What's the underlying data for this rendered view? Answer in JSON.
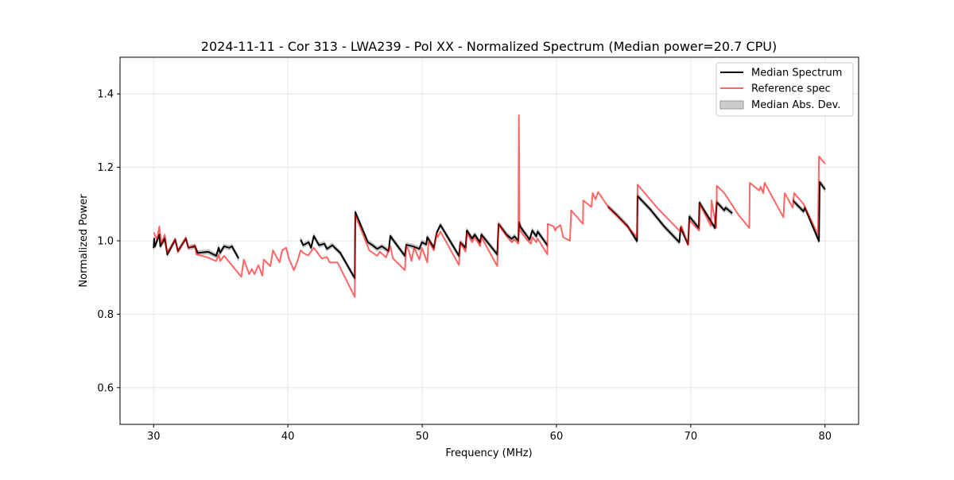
{
  "chart_data": {
    "type": "line",
    "title": "2024-11-11 - Cor 313 - LWA239 - Pol XX - Normalized Spectrum (Median power=20.7 CPU)",
    "xlabel": "Frequency (MHz)",
    "ylabel": "Normalized Power",
    "xlim": [
      27.5,
      82.5
    ],
    "ylim": [
      0.5,
      1.5
    ],
    "xticks": [
      30,
      40,
      50,
      60,
      70,
      80
    ],
    "xtick_labels": [
      "30",
      "40",
      "50",
      "60",
      "70",
      "80"
    ],
    "yticks": [
      0.6,
      0.8,
      1.0,
      1.2,
      1.4
    ],
    "ytick_labels": [
      "0.6",
      "0.8",
      "1.0",
      "1.2",
      "1.4"
    ],
    "grid": true,
    "legend_position": "top-right",
    "legend": [
      "Median Spectrum",
      "Reference spec",
      "Median Abs. Dev."
    ],
    "colors": {
      "median": "#000000",
      "reference": "#ff0000",
      "mad": "#999999"
    },
    "mad_halfwidth": 0.006,
    "series": [
      {
        "name": "Median Spectrum",
        "segments": [
          [
            [
              30.0,
              0.98
            ],
            [
              30.04,
              1.006
            ],
            [
              30.1,
              0.985
            ],
            [
              30.43,
              1.017
            ],
            [
              30.5,
              0.985
            ],
            [
              30.83,
              1.006
            ],
            [
              31.02,
              0.963
            ],
            [
              31.61,
              1.003
            ],
            [
              31.81,
              0.972
            ],
            [
              32.4,
              1.006
            ],
            [
              32.59,
              0.981
            ],
            [
              33.08,
              0.985
            ],
            [
              33.28,
              0.967
            ],
            [
              34.07,
              0.97
            ],
            [
              34.66,
              0.959
            ],
            [
              34.85,
              0.981
            ],
            [
              34.95,
              0.967
            ],
            [
              35.25,
              0.985
            ],
            [
              35.64,
              0.981
            ],
            [
              35.83,
              0.985
            ],
            [
              36.33,
              0.952
            ]
          ],
          [
            [
              40.95,
              1.003
            ],
            [
              41.14,
              0.988
            ],
            [
              41.54,
              0.996
            ],
            [
              41.73,
              0.981
            ],
            [
              41.93,
              1.013
            ],
            [
              42.32,
              0.988
            ],
            [
              42.72,
              0.992
            ],
            [
              42.91,
              0.978
            ],
            [
              43.31,
              0.988
            ],
            [
              43.5,
              0.981
            ],
            [
              43.9,
              0.967
            ],
            [
              44.98,
              0.898
            ],
            [
              45.02,
              1.078
            ],
            [
              45.96,
              0.996
            ],
            [
              46.26,
              0.989
            ],
            [
              46.65,
              0.978
            ],
            [
              47.0,
              0.985
            ],
            [
              47.5,
              0.972
            ],
            [
              47.63,
              1.013
            ],
            [
              47.82,
              1.003
            ],
            [
              48.71,
              0.959
            ],
            [
              48.81,
              0.989
            ],
            [
              49.3,
              0.985
            ],
            [
              49.79,
              0.978
            ],
            [
              49.98,
              0.996
            ],
            [
              50.3,
              0.99
            ],
            [
              50.38,
              1.01
            ],
            [
              50.87,
              0.981
            ],
            [
              51.07,
              1.021
            ],
            [
              51.36,
              1.043
            ],
            [
              52.74,
              0.959
            ],
            [
              52.84,
              0.996
            ],
            [
              53.23,
              0.981
            ],
            [
              53.33,
              1.028
            ],
            [
              53.72,
              1.006
            ],
            [
              53.92,
              1.017
            ],
            [
              54.31,
              0.995
            ],
            [
              54.41,
              1.017
            ],
            [
              55.59,
              0.963
            ],
            [
              55.69,
              1.046
            ],
            [
              56.28,
              1.017
            ],
            [
              56.67,
              1.005
            ],
            [
              56.87,
              1.012
            ],
            [
              57.16,
              1.0
            ],
            [
              57.22,
              1.05
            ],
            [
              57.35,
              1.036
            ],
            [
              58.0,
              1.003
            ],
            [
              58.2,
              1.028
            ],
            [
              58.5,
              1.012
            ],
            [
              58.6,
              1.025
            ],
            [
              59.32,
              0.988
            ]
          ],
          [
            [
              63.84,
              1.093
            ],
            [
              64.5,
              1.07
            ],
            [
              65.3,
              1.04
            ],
            [
              66.0,
              0.999
            ],
            [
              66.04,
              1.122
            ],
            [
              67.0,
              1.085
            ],
            [
              68.0,
              1.04
            ],
            [
              69.15,
              0.996
            ],
            [
              69.25,
              1.036
            ],
            [
              69.8,
              0.99
            ],
            [
              69.9,
              1.066
            ],
            [
              70.6,
              1.035
            ],
            [
              70.65,
              1.104
            ],
            [
              71.8,
              1.035
            ],
            [
              71.94,
              1.105
            ],
            [
              72.5,
              1.083
            ],
            [
              72.6,
              1.09
            ],
            [
              73.09,
              1.075
            ]
          ],
          [
            [
              77.6,
              1.11
            ],
            [
              78.4,
              1.08
            ],
            [
              78.5,
              1.09
            ],
            [
              79.55,
              0.999
            ],
            [
              79.6,
              1.16
            ],
            [
              80.0,
              1.14
            ]
          ]
        ]
      },
      {
        "name": "Reference spec",
        "segments": [
          [
            [
              30.0,
              1.02
            ],
            [
              30.04,
              1.021
            ],
            [
              30.24,
              1.003
            ],
            [
              30.43,
              1.039
            ],
            [
              30.57,
              0.992
            ],
            [
              30.83,
              1.017
            ],
            [
              31.02,
              0.967
            ],
            [
              31.61,
              1.005
            ],
            [
              31.81,
              0.97
            ],
            [
              32.4,
              1.008
            ],
            [
              32.59,
              0.981
            ],
            [
              33.08,
              0.988
            ],
            [
              33.18,
              0.963
            ],
            [
              34.0,
              0.955
            ],
            [
              34.66,
              0.945
            ],
            [
              34.85,
              0.963
            ],
            [
              34.95,
              0.945
            ],
            [
              35.25,
              0.959
            ],
            [
              36.53,
              0.902
            ],
            [
              36.72,
              0.949
            ],
            [
              37.12,
              0.909
            ],
            [
              37.31,
              0.923
            ],
            [
              37.51,
              0.909
            ],
            [
              37.8,
              0.934
            ],
            [
              38.1,
              0.905
            ],
            [
              38.2,
              0.949
            ],
            [
              38.69,
              0.931
            ],
            [
              38.89,
              0.974
            ],
            [
              39.38,
              0.941
            ],
            [
              39.57,
              0.974
            ],
            [
              39.87,
              0.981
            ],
            [
              40.07,
              0.952
            ],
            [
              40.45,
              0.92
            ],
            [
              40.75,
              0.949
            ],
            [
              40.95,
              0.974
            ],
            [
              41.14,
              0.967
            ],
            [
              41.5,
              0.96
            ],
            [
              41.93,
              0.981
            ],
            [
              42.52,
              0.952
            ],
            [
              42.91,
              0.956
            ],
            [
              43.11,
              0.941
            ],
            [
              43.7,
              0.941
            ],
            [
              44.98,
              0.847
            ],
            [
              45.02,
              1.07
            ],
            [
              45.86,
              0.992
            ],
            [
              46.06,
              0.974
            ],
            [
              46.65,
              0.959
            ],
            [
              46.85,
              0.97
            ],
            [
              47.3,
              0.955
            ],
            [
              47.63,
              0.985
            ],
            [
              47.82,
              0.952
            ],
            [
              48.71,
              0.92
            ],
            [
              48.81,
              0.985
            ],
            [
              49.0,
              0.974
            ],
            [
              49.2,
              0.945
            ],
            [
              49.4,
              0.981
            ],
            [
              49.79,
              0.949
            ],
            [
              49.98,
              0.981
            ],
            [
              50.38,
              0.941
            ],
            [
              50.48,
              1.0
            ],
            [
              50.87,
              0.974
            ],
            [
              51.07,
              1.021
            ],
            [
              51.17,
              1.01
            ],
            [
              51.36,
              1.025
            ],
            [
              52.74,
              0.934
            ],
            [
              52.84,
              0.996
            ],
            [
              53.23,
              0.97
            ],
            [
              53.33,
              1.021
            ],
            [
              53.72,
              0.996
            ],
            [
              53.92,
              1.01
            ],
            [
              54.31,
              0.985
            ],
            [
              54.41,
              1.01
            ],
            [
              55.59,
              0.931
            ],
            [
              55.69,
              1.046
            ],
            [
              56.28,
              1.013
            ],
            [
              56.67,
              0.996
            ],
            [
              56.87,
              1.003
            ],
            [
              57.16,
              0.992
            ],
            [
              57.2,
              1.342
            ],
            [
              57.25,
              1.03
            ],
            [
              57.8,
              1.003
            ],
            [
              58.1,
              0.992
            ],
            [
              58.2,
              1.01
            ],
            [
              58.5,
              0.996
            ],
            [
              58.6,
              1.006
            ],
            [
              59.32,
              0.963
            ],
            [
              59.35,
              1.046
            ],
            [
              59.8,
              1.039
            ],
            [
              59.9,
              1.028
            ],
            [
              60.0,
              1.035
            ],
            [
              60.3,
              1.043
            ],
            [
              60.5,
              1.01
            ],
            [
              61.0,
              1.0
            ],
            [
              61.1,
              1.083
            ],
            [
              61.97,
              1.046
            ],
            [
              62.0,
              1.11
            ],
            [
              62.6,
              1.092
            ],
            [
              62.7,
              1.13
            ],
            [
              62.9,
              1.113
            ],
            [
              63.1,
              1.133
            ],
            [
              63.84,
              1.093
            ],
            [
              65.0,
              1.05
            ],
            [
              66.0,
              1.01
            ],
            [
              66.04,
              1.153
            ],
            [
              67.5,
              1.09
            ],
            [
              69.25,
              1.024
            ],
            [
              69.3,
              1.04
            ],
            [
              69.8,
              0.99
            ],
            [
              69.9,
              1.056
            ],
            [
              70.63,
              1.028
            ],
            [
              70.67,
              1.1
            ],
            [
              71.5,
              1.04
            ],
            [
              71.55,
              1.11
            ],
            [
              71.9,
              1.035
            ],
            [
              71.94,
              1.15
            ],
            [
              72.5,
              1.13
            ],
            [
              73.57,
              1.07
            ],
            [
              74.36,
              1.035
            ],
            [
              74.4,
              1.158
            ],
            [
              75.1,
              1.137
            ],
            [
              75.2,
              1.147
            ],
            [
              75.4,
              1.13
            ],
            [
              75.5,
              1.158
            ],
            [
              76.9,
              1.064
            ],
            [
              77.0,
              1.13
            ],
            [
              77.6,
              1.09
            ],
            [
              77.7,
              1.13
            ],
            [
              78.4,
              1.1
            ],
            [
              79.47,
              1.017
            ],
            [
              79.55,
              1.23
            ],
            [
              80.0,
              1.21
            ]
          ]
        ]
      }
    ]
  }
}
